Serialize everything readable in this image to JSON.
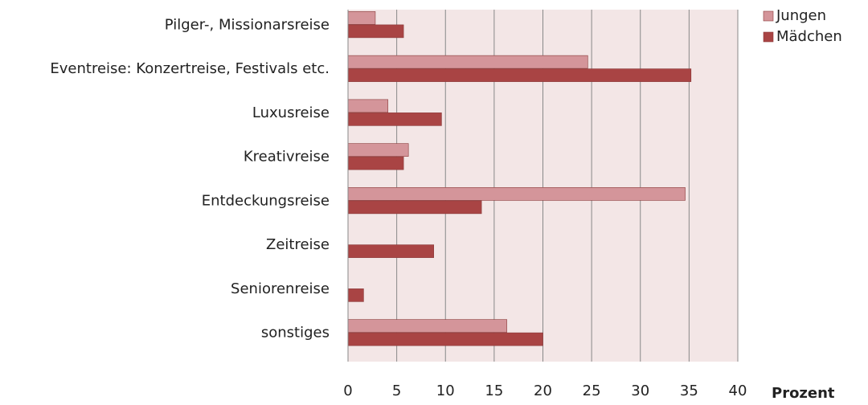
{
  "chart_data": {
    "type": "hbar",
    "categories": [
      "Pilger-, Missionarsreise",
      "Eventreise: Konzertreise, Festivals etc.",
      "Luxusreise",
      "Kreativreise",
      "Entdeckungsreise",
      "Zeitreise",
      "Seniorenreise",
      "sonstiges"
    ],
    "series": [
      {
        "name": "Jungen",
        "color": "#d4959a",
        "values": [
          2.8,
          24.6,
          4.1,
          6.2,
          34.6,
          0,
          0,
          16.3
        ]
      },
      {
        "name": "Mädchen",
        "color": "#a94444",
        "values": [
          5.7,
          35.2,
          9.6,
          5.7,
          13.7,
          8.8,
          1.6,
          20.0
        ]
      }
    ],
    "xlim": [
      0,
      40
    ],
    "xticks": [
      0,
      5,
      10,
      15,
      20,
      25,
      30,
      35,
      40
    ],
    "x_label": "Prozent",
    "grid": true,
    "legend": "top-right"
  }
}
